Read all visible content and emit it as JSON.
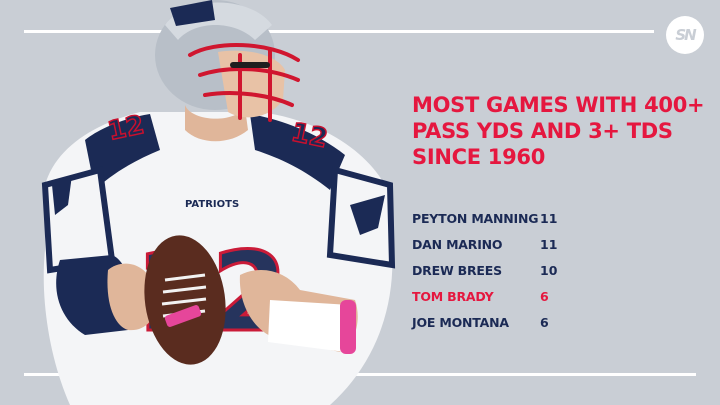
{
  "brand": {
    "logo_text": "SN",
    "accent_color": "#e5173f",
    "navy_color": "#1b2a55",
    "background_color": "#c9ced5"
  },
  "headline": "Most games with 400+ pass yds and 3+ TDs since 1960",
  "leaders": [
    {
      "name": "PEYTON MANNING",
      "games": "11",
      "highlight": false
    },
    {
      "name": "DAN MARINO",
      "games": "11",
      "highlight": false
    },
    {
      "name": "DREW BREES",
      "games": "10",
      "highlight": false
    },
    {
      "name": "TOM BRADY",
      "games": "6",
      "highlight": true
    },
    {
      "name": "JOE MONTANA",
      "games": "6",
      "highlight": false
    }
  ],
  "player_image": {
    "jersey_number": "12",
    "chest_text": "PATRIOTS"
  }
}
